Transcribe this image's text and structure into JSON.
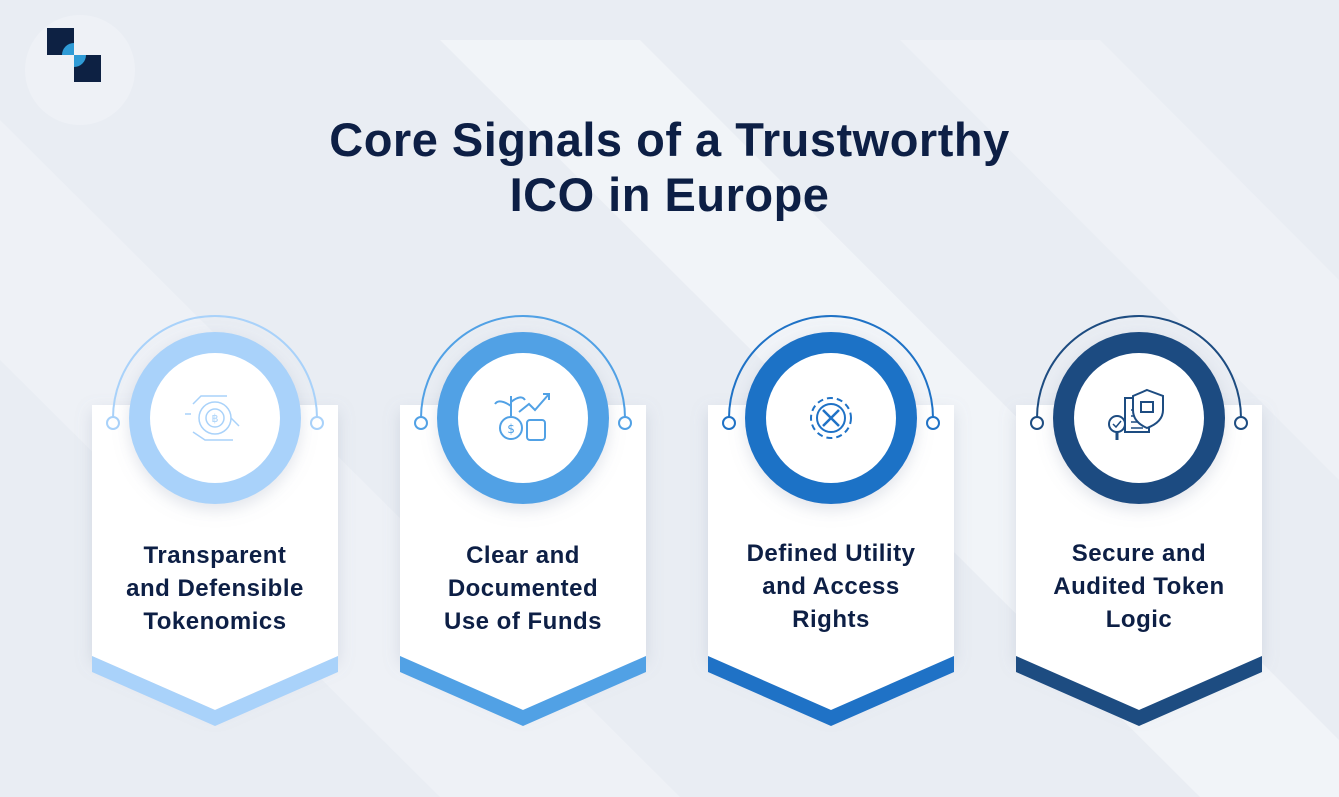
{
  "title": {
    "line1": "Core Signals of a Trustworthy",
    "line2": "ICO in Europe"
  },
  "logo": {
    "icon": "brand-logo-squares",
    "dark": "#0d2143",
    "accent": "#2f9bd6"
  },
  "cards": [
    {
      "lines": [
        "Transparent",
        "and Defensible",
        "Tokenomics"
      ],
      "color": "#a9d2fa",
      "icon": "bitcoin-circuit-icon"
    },
    {
      "lines": [
        "Clear and",
        "Documented",
        "Use of Funds"
      ],
      "color": "#51a1e5",
      "icon": "money-growth-icon"
    },
    {
      "lines": [
        "Defined Utility",
        "and Access",
        "Rights"
      ],
      "color": "#1f72c6",
      "icon": "gear-tools-icon"
    },
    {
      "lines": [
        "Secure and",
        "Audited Token",
        "Logic"
      ],
      "color": "#1d4c81",
      "icon": "audit-document-lock-icon"
    }
  ]
}
